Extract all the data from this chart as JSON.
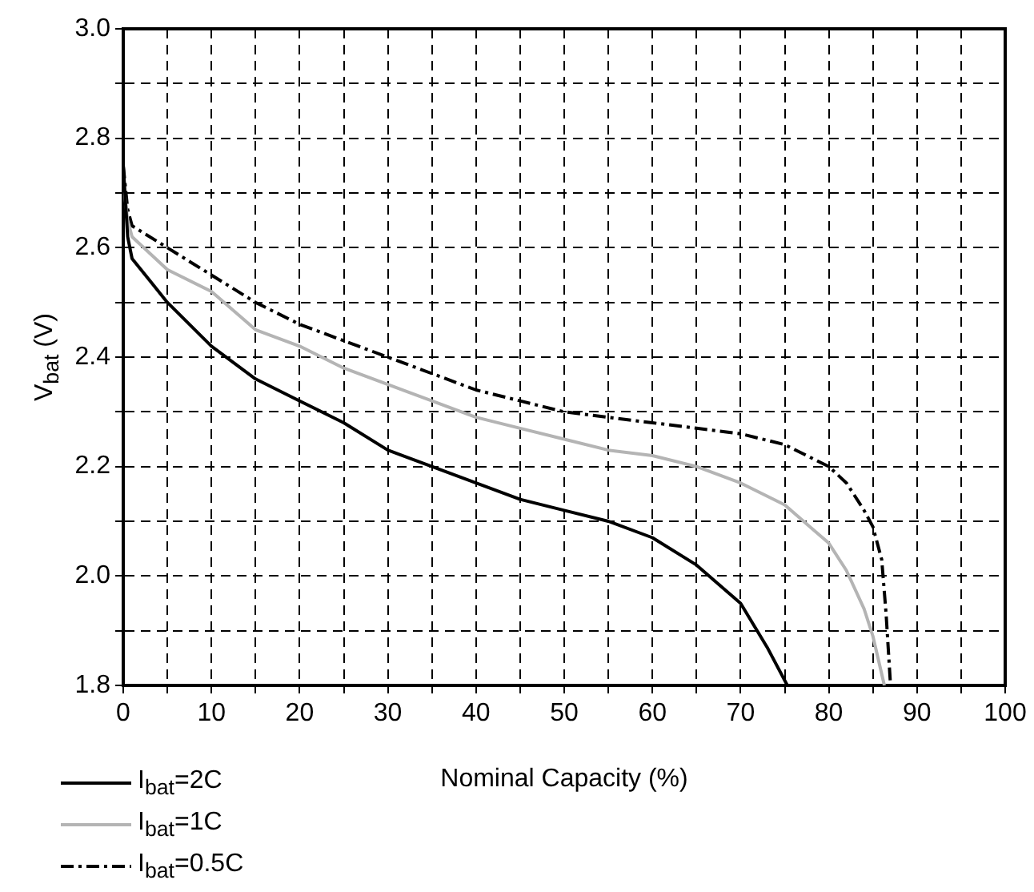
{
  "chart_data": {
    "type": "line",
    "xlabel": "Nominal Capacity (%)",
    "ylabel": "V$_{bat}$ (V)",
    "xlim": [
      0,
      100
    ],
    "ylim": [
      1.8,
      3.0
    ],
    "xticks": [
      0,
      {
        "value": 5,
        "label": null
      },
      10,
      {
        "value": 15,
        "label": null
      },
      20,
      {
        "value": 25,
        "label": null
      },
      30,
      {
        "value": 35,
        "label": null
      },
      40,
      {
        "value": 45,
        "label": null
      },
      50,
      {
        "value": 55,
        "label": null
      },
      60,
      {
        "value": 65,
        "label": null
      },
      70,
      {
        "value": 75,
        "label": null
      },
      80,
      {
        "value": 85,
        "label": null
      },
      90,
      {
        "value": 95,
        "label": null
      },
      100
    ],
    "yticks": [
      {
        "value": 1.8,
        "label": "1.8"
      },
      {
        "value": 1.9,
        "label": null
      },
      {
        "value": 2.0,
        "label": "2.0"
      },
      {
        "value": 2.1,
        "label": null
      },
      {
        "value": 2.2,
        "label": "2.2"
      },
      {
        "value": 2.3,
        "label": null
      },
      {
        "value": 2.4,
        "label": "2.4"
      },
      {
        "value": 2.5,
        "label": null
      },
      {
        "value": 2.6,
        "label": "2.6"
      },
      {
        "value": 2.7,
        "label": null
      },
      {
        "value": 2.8,
        "label": "2.8"
      },
      {
        "value": 2.9,
        "label": null
      },
      {
        "value": 3.0,
        "label": "3.0"
      }
    ],
    "grid": true,
    "legend": "bottom left",
    "marker": "none",
    "series": [
      {
        "name": "I$_{bat}$=2C",
        "color": "#000000",
        "line_style": "solid",
        "x": [
          0,
          0.5,
          1,
          3,
          5,
          10,
          15,
          20,
          25,
          30,
          35,
          40,
          45,
          50,
          55,
          60,
          65,
          70,
          73,
          75.3
        ],
        "values": [
          2.75,
          2.62,
          2.58,
          2.54,
          2.5,
          2.42,
          2.36,
          2.32,
          2.28,
          2.23,
          2.2,
          2.17,
          2.14,
          2.12,
          2.1,
          2.07,
          2.02,
          1.95,
          1.87,
          1.8
        ]
      },
      {
        "name": "I$_{bat}$=1C",
        "color": "#b4b4b4",
        "line_style": "solid",
        "x": [
          0,
          0.5,
          1,
          5,
          10,
          15,
          20,
          25,
          30,
          35,
          40,
          45,
          50,
          55,
          60,
          65,
          70,
          75,
          80,
          82,
          84,
          85,
          86.3
        ],
        "values": [
          2.72,
          2.65,
          2.62,
          2.56,
          2.52,
          2.45,
          2.42,
          2.38,
          2.35,
          2.32,
          2.29,
          2.27,
          2.25,
          2.23,
          2.22,
          2.2,
          2.17,
          2.13,
          2.06,
          2.01,
          1.94,
          1.89,
          1.8
        ]
      },
      {
        "name": "I$_{bat}$=0.5C",
        "color": "#000000",
        "line_style": "dashed",
        "x": [
          0,
          0.5,
          1,
          5,
          10,
          15,
          20,
          25,
          30,
          35,
          40,
          45,
          50,
          55,
          60,
          65,
          70,
          75,
          80,
          82,
          84,
          85,
          86,
          86.5,
          87
        ],
        "values": [
          2.75,
          2.67,
          2.64,
          2.6,
          2.55,
          2.5,
          2.46,
          2.43,
          2.4,
          2.37,
          2.34,
          2.32,
          2.3,
          2.29,
          2.28,
          2.27,
          2.26,
          2.24,
          2.2,
          2.17,
          2.12,
          2.09,
          2.03,
          1.93,
          1.8
        ]
      }
    ]
  }
}
